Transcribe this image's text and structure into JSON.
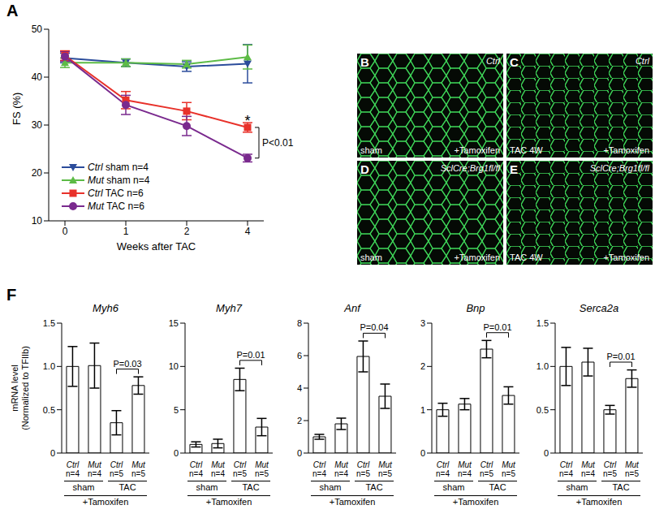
{
  "chart_data": [
    {
      "type": "line",
      "panel": "A",
      "categories": [
        "0",
        "1",
        "2",
        "4"
      ],
      "xlabel": "Weeks after TAC",
      "ylabel": "FS (%)",
      "ylim": [
        10,
        50
      ],
      "yticks": [
        10,
        20,
        30,
        40,
        50
      ],
      "legend": "lower left",
      "series": [
        {
          "name": "Ctrl sham n=4",
          "color": "#2b4c9b",
          "marker": "triangle-down",
          "line_style": "solid",
          "values": [
            44,
            43,
            42.2,
            42.8
          ],
          "errors": [
            1,
            0.8,
            1,
            4
          ]
        },
        {
          "name": "Mut sham n=4",
          "color": "#5dbb46",
          "marker": "triangle",
          "line_style": "solid",
          "values": [
            43,
            43,
            42.7,
            44.2
          ],
          "errors": [
            1,
            0.8,
            0.8,
            2.5
          ]
        },
        {
          "name": "Ctrl TAC n=6",
          "color": "#e8312a",
          "marker": "square",
          "line_style": "solid",
          "values": [
            44.5,
            35.2,
            32.9,
            29.5
          ],
          "errors": [
            1,
            1.8,
            1.8,
            1
          ]
        },
        {
          "name": "Mut TAC n=6",
          "color": "#7a2a8e",
          "marker": "circle",
          "line_style": "solid",
          "values": [
            44.3,
            34.2,
            29.8,
            23.1
          ],
          "errors": [
            1,
            2,
            2,
            0.8
          ]
        }
      ],
      "annotations": [
        {
          "text": "*",
          "x": "4",
          "series": "Ctrl TAC n=6"
        },
        {
          "text": "P<0.01",
          "x": "4",
          "between": [
            "Ctrl TAC n=6",
            "Mut TAC n=6"
          ]
        }
      ]
    },
    {
      "type": "bar",
      "panel": "F",
      "title": "Myh6",
      "ylabel": "mRNA level\n(Normalized to TFIIb)",
      "categories": [
        "Ctrl n=4",
        "Mut n=4",
        "Ctrl n=5",
        "Mut n=5"
      ],
      "groups": [
        {
          "label": "sham",
          "from": 0,
          "to": 1
        },
        {
          "label": "TAC",
          "from": 2,
          "to": 3
        }
      ],
      "group_label": "+Tamoxifen",
      "values": [
        1,
        1.01,
        0.35,
        0.78
      ],
      "errors": [
        0.23,
        0.26,
        0.14,
        0.1
      ],
      "color": "#ffffff",
      "ylim": [
        0,
        1.5
      ],
      "yticks": [
        0,
        0.5,
        {
          "value": 1,
          "label": "1.0"
        },
        1.5
      ],
      "annotations": [
        {
          "text": "P=0.03",
          "between": [
            2,
            3
          ]
        }
      ]
    },
    {
      "type": "bar",
      "title": "Myh7",
      "categories": [
        "Ctrl n=4",
        "Mut n=4",
        "Ctrl n=5",
        "Mut n=5"
      ],
      "groups": [
        {
          "label": "sham",
          "from": 0,
          "to": 1
        },
        {
          "label": "TAC",
          "from": 2,
          "to": 3
        }
      ],
      "group_label": "+Tamoxifen",
      "values": [
        1,
        1.1,
        8.5,
        3
      ],
      "errors": [
        0.3,
        0.5,
        1.3,
        1
      ],
      "color": "#ffffff",
      "ylim": [
        0,
        15
      ],
      "yticks": [
        0,
        5,
        10,
        15
      ],
      "annotations": [
        {
          "text": "P=0.01",
          "between": [
            2,
            3
          ]
        }
      ]
    },
    {
      "type": "bar",
      "title": "Anf",
      "categories": [
        "Ctrl n=4",
        "Mut n=4",
        "Ctrl n=5",
        "Mut n=5"
      ],
      "groups": [
        {
          "label": "sham",
          "from": 0,
          "to": 1
        },
        {
          "label": "TAC",
          "from": 2,
          "to": 3
        }
      ],
      "group_label": "+Tamoxifen",
      "values": [
        1,
        1.8,
        5.95,
        3.5
      ],
      "errors": [
        0.15,
        0.35,
        0.95,
        0.75
      ],
      "color": "#ffffff",
      "ylim": [
        0,
        8
      ],
      "yticks": [
        0,
        2,
        4,
        6,
        8
      ],
      "annotations": [
        {
          "text": "P=0.04",
          "between": [
            2,
            3
          ]
        }
      ]
    },
    {
      "type": "bar",
      "title": "Bnp",
      "categories": [
        "Ctrl n=4",
        "Mut n=4",
        "Ctrl n=5",
        "Mut n=5"
      ],
      "groups": [
        {
          "label": "sham",
          "from": 0,
          "to": 1
        },
        {
          "label": "TAC",
          "from": 2,
          "to": 3
        }
      ],
      "group_label": "+Tamoxifen",
      "values": [
        1,
        1.13,
        2.4,
        1.33
      ],
      "errors": [
        0.15,
        0.13,
        0.2,
        0.2
      ],
      "color": "#ffffff",
      "ylim": [
        0,
        3
      ],
      "yticks": [
        0,
        1,
        2,
        3
      ],
      "annotations": [
        {
          "text": "P=0.01",
          "between": [
            2,
            3
          ]
        }
      ]
    },
    {
      "type": "bar",
      "title": "Serca2a",
      "categories": [
        "Ctrl n=4",
        "Mut n=4",
        "Ctrl n=5",
        "Mut n=5"
      ],
      "groups": [
        {
          "label": "sham",
          "from": 0,
          "to": 1
        },
        {
          "label": "TAC",
          "from": 2,
          "to": 3
        }
      ],
      "group_label": "+Tamoxifen",
      "values": [
        1,
        1.05,
        0.5,
        0.86
      ],
      "errors": [
        0.22,
        0.16,
        0.05,
        0.1
      ],
      "color": "#ffffff",
      "ylim": [
        0,
        1.5
      ],
      "yticks": [
        0,
        0.5,
        {
          "value": 1,
          "label": "1.0"
        },
        1.5
      ],
      "annotations": [
        {
          "text": "P=0.01",
          "between": [
            2,
            3
          ]
        }
      ]
    }
  ],
  "image_panels": [
    {
      "panel": "B",
      "top_right": "Ctrl",
      "bottom_left": "sham",
      "bottom_right": "+Tamoxifen"
    },
    {
      "panel": "C",
      "top_right": "Ctrl",
      "bottom_left": "TAC 4W",
      "bottom_right": "+Tamoxifen"
    },
    {
      "panel": "D",
      "top_right": "SclCre;Brg1fl/fl",
      "bottom_left": "sham",
      "bottom_right": "+Tamoxifen"
    },
    {
      "panel": "E",
      "top_right": "SclCre;Brg1fl/fl",
      "bottom_left": "TAC 4W",
      "bottom_right": "+Tamoxifen"
    }
  ]
}
